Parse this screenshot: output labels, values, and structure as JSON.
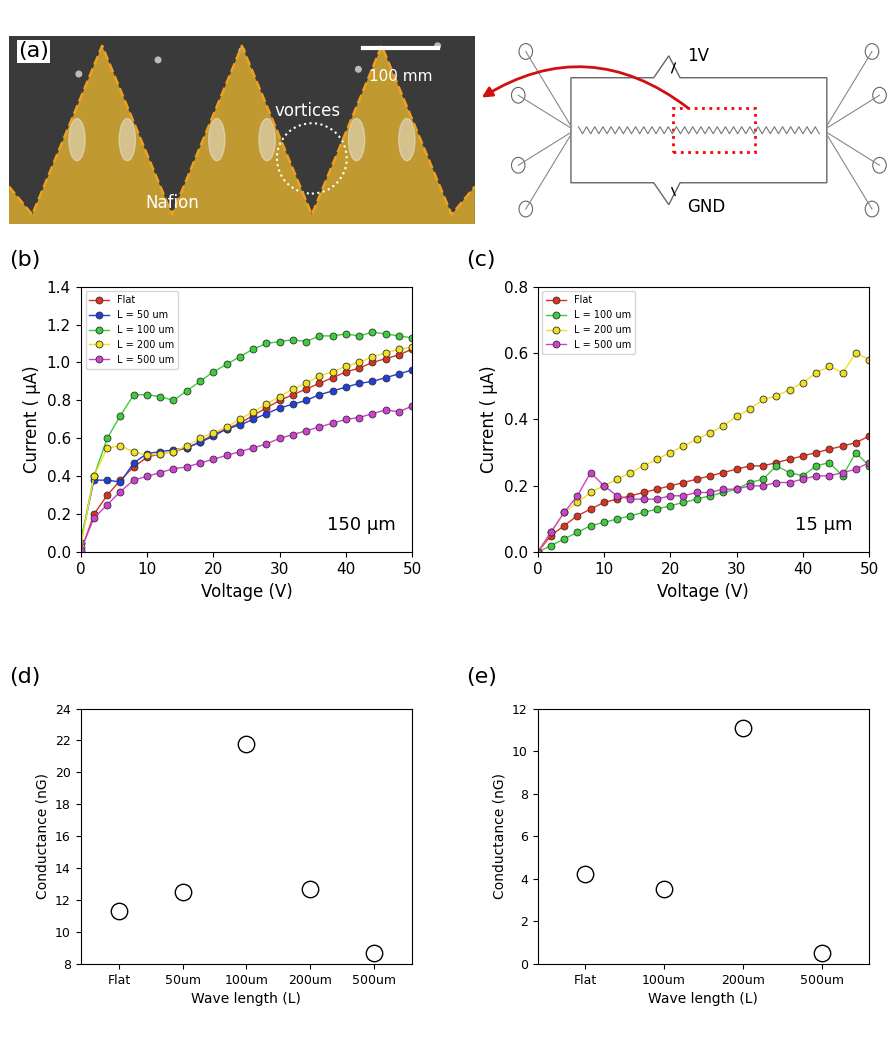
{
  "image_panel": {
    "panel_label": "(a)",
    "scale_bar": "100 mm",
    "annotations": [
      "vortices",
      "Nafion"
    ],
    "schematic": {
      "top_label": "1V",
      "bottom_label": "GND"
    }
  },
  "chart_data": [
    {
      "type": "line",
      "panel_label": "(b)",
      "annotation": "150 μm",
      "x_label": "Voltage (V)",
      "y_label": "Current ( μA)",
      "xlim": [
        0,
        50
      ],
      "xticks": [
        0,
        10,
        20,
        30,
        40,
        50
      ],
      "ylim": [
        0,
        1.4
      ],
      "yticks": [
        0.0,
        0.2,
        0.4,
        0.6,
        0.8,
        1.0,
        1.2,
        1.4
      ],
      "legend": "upper left",
      "marker": "circle",
      "x": [
        0,
        2,
        4,
        6,
        8,
        10,
        12,
        14,
        16,
        18,
        20,
        22,
        24,
        26,
        28,
        30,
        32,
        34,
        36,
        38,
        40,
        42,
        44,
        46,
        48,
        50
      ],
      "series": [
        {
          "name": "Flat",
          "color": "#e0301e",
          "values": [
            0,
            0.2,
            0.3,
            0.38,
            0.45,
            0.5,
            0.52,
            0.53,
            0.55,
            0.58,
            0.62,
            0.65,
            0.68,
            0.72,
            0.76,
            0.8,
            0.83,
            0.86,
            0.89,
            0.92,
            0.95,
            0.97,
            1.0,
            1.02,
            1.04,
            1.07
          ]
        },
        {
          "name": "L = 50 um",
          "color": "#1f3fd6",
          "values": [
            0.05,
            0.38,
            0.38,
            0.37,
            0.47,
            0.52,
            0.53,
            0.54,
            0.55,
            0.58,
            0.61,
            0.65,
            0.67,
            0.7,
            0.73,
            0.76,
            0.78,
            0.8,
            0.83,
            0.85,
            0.87,
            0.89,
            0.9,
            0.92,
            0.94,
            0.96
          ]
        },
        {
          "name": "L = 100 um",
          "color": "#3ccc3c",
          "values": [
            0.05,
            0.4,
            0.6,
            0.72,
            0.83,
            0.83,
            0.82,
            0.8,
            0.85,
            0.9,
            0.95,
            0.99,
            1.03,
            1.07,
            1.1,
            1.11,
            1.12,
            1.11,
            1.14,
            1.14,
            1.15,
            1.14,
            1.16,
            1.15,
            1.14,
            1.13
          ]
        },
        {
          "name": "L = 200 um",
          "color": "#f0e020",
          "values": [
            0.03,
            0.4,
            0.55,
            0.56,
            0.53,
            0.51,
            0.52,
            0.53,
            0.56,
            0.6,
            0.63,
            0.66,
            0.7,
            0.74,
            0.78,
            0.82,
            0.86,
            0.89,
            0.93,
            0.95,
            0.98,
            1.0,
            1.03,
            1.05,
            1.07,
            1.08
          ]
        },
        {
          "name": "L = 500 um",
          "color": "#d040d0",
          "values": [
            0.01,
            0.18,
            0.25,
            0.32,
            0.38,
            0.4,
            0.42,
            0.44,
            0.45,
            0.47,
            0.49,
            0.51,
            0.53,
            0.55,
            0.57,
            0.6,
            0.62,
            0.64,
            0.66,
            0.68,
            0.7,
            0.71,
            0.73,
            0.75,
            0.74,
            0.77
          ]
        }
      ]
    },
    {
      "type": "line",
      "panel_label": "(c)",
      "annotation": "15 μm",
      "x_label": "Voltage (V)",
      "y_label": "Current ( μA)",
      "xlim": [
        0,
        50
      ],
      "xticks": [
        0,
        10,
        20,
        30,
        40,
        50
      ],
      "ylim": [
        0,
        0.8
      ],
      "yticks": [
        0.0,
        0.2,
        0.4,
        0.6,
        0.8
      ],
      "legend": "upper left",
      "marker": "circle",
      "x": [
        0,
        2,
        4,
        6,
        8,
        10,
        12,
        14,
        16,
        18,
        20,
        22,
        24,
        26,
        28,
        30,
        32,
        34,
        36,
        38,
        40,
        42,
        44,
        46,
        48,
        50
      ],
      "series": [
        {
          "name": "Flat",
          "color": "#e0301e",
          "values": [
            0,
            0.05,
            0.08,
            0.11,
            0.13,
            0.15,
            0.16,
            0.17,
            0.18,
            0.19,
            0.2,
            0.21,
            0.22,
            0.23,
            0.24,
            0.25,
            0.26,
            0.26,
            0.27,
            0.28,
            0.29,
            0.3,
            0.31,
            0.32,
            0.33,
            0.35
          ]
        },
        {
          "name": "L = 100 um",
          "color": "#3ccc3c",
          "values": [
            0,
            0.02,
            0.04,
            0.06,
            0.08,
            0.09,
            0.1,
            0.11,
            0.12,
            0.13,
            0.14,
            0.15,
            0.16,
            0.17,
            0.18,
            0.19,
            0.21,
            0.22,
            0.26,
            0.24,
            0.23,
            0.26,
            0.27,
            0.23,
            0.3,
            0.26
          ]
        },
        {
          "name": "L = 200 um",
          "color": "#f0e020",
          "values": [
            0,
            0.06,
            0.12,
            0.15,
            0.18,
            0.2,
            0.22,
            0.24,
            0.26,
            0.28,
            0.3,
            0.32,
            0.34,
            0.36,
            0.38,
            0.41,
            0.43,
            0.46,
            0.47,
            0.49,
            0.51,
            0.54,
            0.56,
            0.54,
            0.6,
            0.58
          ]
        },
        {
          "name": "L = 500 um",
          "color": "#d040d0",
          "values": [
            0,
            0.06,
            0.12,
            0.17,
            0.24,
            0.2,
            0.17,
            0.16,
            0.16,
            0.16,
            0.17,
            0.17,
            0.18,
            0.18,
            0.19,
            0.19,
            0.2,
            0.2,
            0.21,
            0.21,
            0.22,
            0.23,
            0.23,
            0.24,
            0.25,
            0.27
          ]
        }
      ]
    },
    {
      "type": "scatter",
      "panel_label": "(d)",
      "x_label": "Wave length (L)",
      "y_label": "Conductance (nG)",
      "categories": [
        "Flat",
        "50um",
        "100um",
        "200um",
        "500um"
      ],
      "values": [
        11.3,
        12.5,
        21.8,
        12.7,
        8.7
      ],
      "ylim": [
        8,
        24
      ],
      "yticks": [
        8,
        10,
        12,
        14,
        16,
        18,
        20,
        22,
        24
      ],
      "marker": "open circle",
      "color": "#000000"
    },
    {
      "type": "scatter",
      "panel_label": "(e)",
      "x_label": "Wave length (L)",
      "y_label": "Conductance (nG)",
      "categories": [
        "Flat",
        "100um",
        "200um",
        "500um"
      ],
      "values": [
        4.2,
        3.5,
        11.1,
        0.5
      ],
      "ylim": [
        0,
        12
      ],
      "yticks": [
        0,
        2,
        4,
        6,
        8,
        10,
        12
      ],
      "marker": "open circle",
      "color": "#000000"
    }
  ]
}
